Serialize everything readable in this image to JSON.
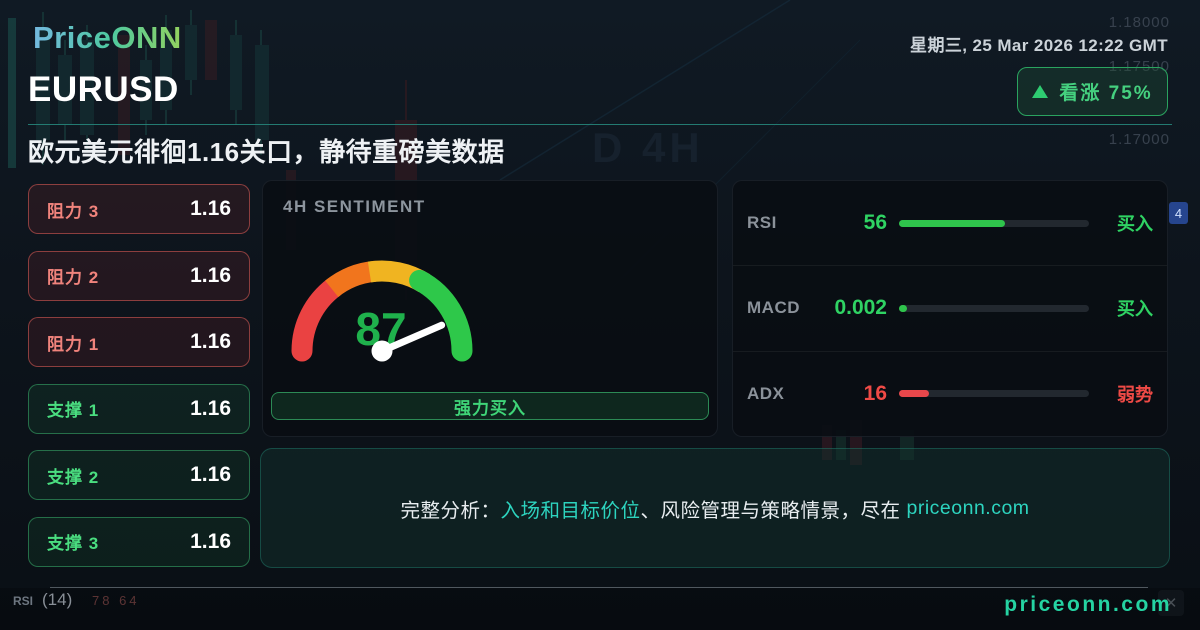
{
  "brand": {
    "logo_text": "PriceONN"
  },
  "header": {
    "datetime": "星期三, 25 Mar 2026 12:22 GMT",
    "symbol": "EURUSD",
    "headline": "欧元美元徘徊1.16关口，静待重磅美数据",
    "bias_badge": {
      "icon": "up-triangle-icon",
      "label": "看涨 75%"
    }
  },
  "levels": [
    {
      "type": "resistance",
      "label": "阻力 3",
      "value": "1.16"
    },
    {
      "type": "resistance",
      "label": "阻力 2",
      "value": "1.16"
    },
    {
      "type": "resistance",
      "label": "阻力 1",
      "value": "1.16"
    },
    {
      "type": "support",
      "label": "支撑 1",
      "value": "1.16"
    },
    {
      "type": "support",
      "label": "支撑 2",
      "value": "1.16"
    },
    {
      "type": "support",
      "label": "支撑 3",
      "value": "1.16"
    }
  ],
  "sentiment": {
    "panel_title": "4H SENTIMENT",
    "score": "87",
    "score_percent": 87,
    "verdict": "强力买入"
  },
  "indicators": [
    {
      "name": "RSI",
      "value": "56",
      "bar_percent": 56,
      "signal": "买入",
      "tone": "bullish"
    },
    {
      "name": "MACD",
      "value": "0.002",
      "bar_percent": 4,
      "signal": "买入",
      "tone": "bullish"
    },
    {
      "name": "ADX",
      "value": "16",
      "bar_percent": 16,
      "signal": "弱势",
      "tone": "bearish"
    }
  ],
  "cta": {
    "prefix": "完整分析：",
    "highlight": "入场和目标价位",
    "middle": "、风险管理与策略情景，尽在",
    "site": "priceonn.com"
  },
  "footer": {
    "site": "priceonn.com"
  },
  "background_artifacts": {
    "price_labels": [
      "1.18000",
      "1.17500",
      "1.17000"
    ],
    "price_label_tops": [
      14,
      58,
      131
    ],
    "timeframe_watermark": "D 4H",
    "rsi_label": "RSI",
    "rsi_period": "(14)",
    "rsi_values": "78 64",
    "price_scale_badge": "4",
    "close_glyph": "✕"
  },
  "colors": {
    "bullish_green": "#2fd363",
    "score_green": "#1fb14c",
    "bearish_red": "#ef4a46",
    "teal_accent": "#2dd4bf",
    "badge_green": "#45d07f",
    "gauge_red": "#ea4242",
    "gauge_orange": "#f1751d",
    "gauge_gold": "#f0b421",
    "gauge_green": "#2ec84a"
  }
}
